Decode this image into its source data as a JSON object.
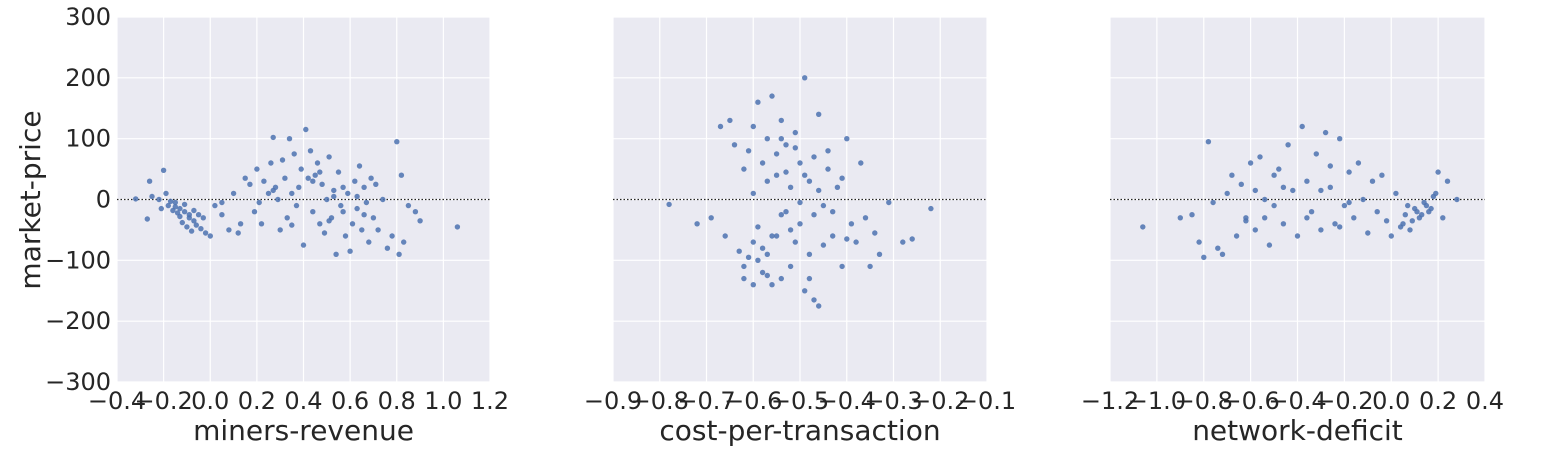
{
  "figure": {
    "ylabel": "market-price"
  },
  "chart_data": [
    {
      "type": "scatter",
      "xlabel": "miners-revenue",
      "ylabel": "market-price",
      "xlim": [
        -0.4,
        1.2
      ],
      "ylim": [
        -300,
        300
      ],
      "xticks": [
        "−0.4",
        "−0.2",
        "0.0",
        "0.2",
        "0.4",
        "0.6",
        "0.8",
        "1.0",
        "1.2"
      ],
      "yticks": [
        "300",
        "200",
        "100",
        "0",
        "−100",
        "−200",
        "−300"
      ],
      "reference_line": 0,
      "color": "#4c72b0",
      "points": [
        [
          -0.32,
          1
        ],
        [
          -0.27,
          -32
        ],
        [
          -0.26,
          30
        ],
        [
          -0.25,
          5
        ],
        [
          -0.22,
          0
        ],
        [
          -0.21,
          -15
        ],
        [
          -0.2,
          48
        ],
        [
          -0.19,
          10
        ],
        [
          -0.18,
          -10
        ],
        [
          -0.17,
          -3
        ],
        [
          -0.16,
          -18
        ],
        [
          -0.15,
          -5
        ],
        [
          -0.14,
          -22
        ],
        [
          -0.13,
          -28
        ],
        [
          -0.12,
          -38
        ],
        [
          -0.11,
          -20
        ],
        [
          -0.1,
          -45
        ],
        [
          -0.09,
          -30
        ],
        [
          -0.08,
          -52
        ],
        [
          -0.07,
          -35
        ],
        [
          -0.06,
          -42
        ],
        [
          -0.05,
          -25
        ],
        [
          -0.04,
          -48
        ],
        [
          -0.03,
          -30
        ],
        [
          -0.02,
          -55
        ],
        [
          0.0,
          -60
        ],
        [
          0.02,
          -10
        ],
        [
          0.05,
          -25
        ],
        [
          0.08,
          -50
        ],
        [
          0.1,
          10
        ],
        [
          0.12,
          -55
        ],
        [
          0.13,
          -40
        ],
        [
          0.15,
          35
        ],
        [
          0.17,
          25
        ],
        [
          0.19,
          -20
        ],
        [
          0.2,
          50
        ],
        [
          0.21,
          -5
        ],
        [
          0.23,
          30
        ],
        [
          0.25,
          10
        ],
        [
          0.26,
          60
        ],
        [
          0.27,
          102
        ],
        [
          0.28,
          20
        ],
        [
          0.29,
          0
        ],
        [
          0.3,
          -50
        ],
        [
          0.31,
          65
        ],
        [
          0.32,
          35
        ],
        [
          0.33,
          -30
        ],
        [
          0.34,
          100
        ],
        [
          0.35,
          10
        ],
        [
          0.36,
          75
        ],
        [
          0.37,
          -10
        ],
        [
          0.38,
          20
        ],
        [
          0.39,
          50
        ],
        [
          0.4,
          -75
        ],
        [
          0.41,
          115
        ],
        [
          0.42,
          35
        ],
        [
          0.43,
          80
        ],
        [
          0.44,
          -20
        ],
        [
          0.45,
          40
        ],
        [
          0.46,
          60
        ],
        [
          0.47,
          -40
        ],
        [
          0.48,
          25
        ],
        [
          0.49,
          -55
        ],
        [
          0.5,
          0
        ],
        [
          0.51,
          70
        ],
        [
          0.52,
          -30
        ],
        [
          0.53,
          15
        ],
        [
          0.54,
          -90
        ],
        [
          0.55,
          45
        ],
        [
          0.56,
          -10
        ],
        [
          0.57,
          20
        ],
        [
          0.58,
          -60
        ],
        [
          0.59,
          10
        ],
        [
          0.6,
          -85
        ],
        [
          0.61,
          -40
        ],
        [
          0.62,
          30
        ],
        [
          0.63,
          -15
        ],
        [
          0.64,
          55
        ],
        [
          0.65,
          -50
        ],
        [
          0.66,
          20
        ],
        [
          0.67,
          -5
        ],
        [
          0.68,
          -70
        ],
        [
          0.69,
          35
        ],
        [
          0.7,
          -30
        ],
        [
          0.72,
          -50
        ],
        [
          0.74,
          0
        ],
        [
          0.76,
          -80
        ],
        [
          0.78,
          -60
        ],
        [
          0.8,
          95
        ],
        [
          0.81,
          -90
        ],
        [
          0.82,
          40
        ],
        [
          0.83,
          -70
        ],
        [
          0.85,
          -10
        ],
        [
          0.88,
          -20
        ],
        [
          0.9,
          -35
        ],
        [
          1.06,
          -45
        ],
        [
          -0.15,
          -12
        ],
        [
          -0.13,
          -15
        ],
        [
          -0.11,
          -8
        ],
        [
          -0.09,
          -25
        ],
        [
          -0.07,
          -18
        ],
        [
          0.05,
          -5
        ],
        [
          0.22,
          -40
        ],
        [
          0.27,
          15
        ],
        [
          0.35,
          -42
        ],
        [
          0.44,
          30
        ],
        [
          0.47,
          45
        ],
        [
          0.51,
          -35
        ],
        [
          0.53,
          5
        ],
        [
          0.57,
          -20
        ],
        [
          0.63,
          5
        ],
        [
          0.66,
          -25
        ],
        [
          0.71,
          25
        ]
      ]
    },
    {
      "type": "scatter",
      "xlabel": "cost-per-transaction",
      "ylabel": "market-price",
      "xlim": [
        -0.9,
        -0.1
      ],
      "ylim": [
        -300,
        300
      ],
      "xticks": [
        "−0.9",
        "−0.8",
        "−0.7",
        "−0.6",
        "−0.5",
        "−0.4",
        "−0.3",
        "−0.2",
        "−0.1"
      ],
      "yticks": [
        "300",
        "200",
        "100",
        "0",
        "−100",
        "−200",
        "−300"
      ],
      "reference_line": 0,
      "color": "#4c72b0",
      "points": [
        [
          -0.78,
          -8
        ],
        [
          -0.72,
          -40
        ],
        [
          -0.69,
          -30
        ],
        [
          -0.67,
          120
        ],
        [
          -0.66,
          -60
        ],
        [
          -0.65,
          130
        ],
        [
          -0.64,
          90
        ],
        [
          -0.63,
          -85
        ],
        [
          -0.62,
          -130
        ],
        [
          -0.61,
          80
        ],
        [
          -0.6,
          -70
        ],
        [
          -0.6,
          120
        ],
        [
          -0.59,
          -100
        ],
        [
          -0.59,
          160
        ],
        [
          -0.58,
          60
        ],
        [
          -0.58,
          -120
        ],
        [
          -0.57,
          100
        ],
        [
          -0.57,
          -90
        ],
        [
          -0.56,
          170
        ],
        [
          -0.56,
          -140
        ],
        [
          -0.55,
          40
        ],
        [
          -0.55,
          -60
        ],
        [
          -0.54,
          130
        ],
        [
          -0.54,
          -130
        ],
        [
          -0.53,
          90
        ],
        [
          -0.53,
          -20
        ],
        [
          -0.52,
          20
        ],
        [
          -0.52,
          -110
        ],
        [
          -0.51,
          110
        ],
        [
          -0.51,
          -70
        ],
        [
          -0.5,
          60
        ],
        [
          -0.5,
          -40
        ],
        [
          -0.49,
          200
        ],
        [
          -0.49,
          -150
        ],
        [
          -0.48,
          30
        ],
        [
          -0.48,
          -90
        ],
        [
          -0.47,
          70
        ],
        [
          -0.47,
          -165
        ],
        [
          -0.46,
          140
        ],
        [
          -0.46,
          -175
        ],
        [
          -0.45,
          -10
        ],
        [
          -0.44,
          80
        ],
        [
          -0.43,
          -60
        ],
        [
          -0.42,
          20
        ],
        [
          -0.41,
          -110
        ],
        [
          -0.4,
          100
        ],
        [
          -0.39,
          -40
        ],
        [
          -0.38,
          -70
        ],
        [
          -0.37,
          60
        ],
        [
          -0.36,
          -30
        ],
        [
          -0.35,
          -110
        ],
        [
          -0.34,
          -55
        ],
        [
          -0.33,
          -90
        ],
        [
          -0.31,
          -5
        ],
        [
          -0.28,
          -70
        ],
        [
          -0.26,
          -65
        ],
        [
          -0.22,
          -15
        ],
        [
          -0.62,
          50
        ],
        [
          -0.61,
          -95
        ],
        [
          -0.6,
          10
        ],
        [
          -0.59,
          -45
        ],
        [
          -0.58,
          -80
        ],
        [
          -0.57,
          30
        ],
        [
          -0.56,
          -60
        ],
        [
          -0.55,
          75
        ],
        [
          -0.54,
          -25
        ],
        [
          -0.53,
          45
        ],
        [
          -0.52,
          -50
        ],
        [
          -0.51,
          85
        ],
        [
          -0.5,
          -5
        ],
        [
          -0.49,
          40
        ],
        [
          -0.48,
          -130
        ],
        [
          -0.47,
          -25
        ],
        [
          -0.46,
          15
        ],
        [
          -0.45,
          -75
        ],
        [
          -0.44,
          50
        ],
        [
          -0.43,
          -20
        ],
        [
          -0.41,
          35
        ],
        [
          -0.4,
          -65
        ],
        [
          -0.62,
          -110
        ],
        [
          -0.6,
          -140
        ],
        [
          -0.57,
          -125
        ],
        [
          -0.54,
          100
        ]
      ]
    },
    {
      "type": "scatter",
      "xlabel": "network-deficit",
      "ylabel": "market-price",
      "xlim": [
        -1.2,
        0.4
      ],
      "ylim": [
        -300,
        300
      ],
      "xticks": [
        "−1.2",
        "−1.0",
        "−0.8",
        "−0.6",
        "−0.4",
        "−0.2",
        "0.0",
        "0.2",
        "0.4"
      ],
      "yticks": [
        "300",
        "200",
        "100",
        "0",
        "−100",
        "−200",
        "−300"
      ],
      "reference_line": 0,
      "color": "#4c72b0",
      "points": [
        [
          -1.06,
          -45
        ],
        [
          -0.9,
          -30
        ],
        [
          -0.85,
          -25
        ],
        [
          -0.82,
          -70
        ],
        [
          -0.8,
          -95
        ],
        [
          -0.78,
          95
        ],
        [
          -0.76,
          -5
        ],
        [
          -0.74,
          -80
        ],
        [
          -0.72,
          -90
        ],
        [
          -0.7,
          10
        ],
        [
          -0.68,
          40
        ],
        [
          -0.66,
          -60
        ],
        [
          -0.64,
          25
        ],
        [
          -0.62,
          -30
        ],
        [
          -0.6,
          60
        ],
        [
          -0.58,
          -50
        ],
        [
          -0.56,
          70
        ],
        [
          -0.54,
          0
        ],
        [
          -0.52,
          -75
        ],
        [
          -0.5,
          -10
        ],
        [
          -0.48,
          50
        ],
        [
          -0.46,
          -40
        ],
        [
          -0.44,
          90
        ],
        [
          -0.42,
          15
        ],
        [
          -0.4,
          -60
        ],
        [
          -0.38,
          120
        ],
        [
          -0.36,
          30
        ],
        [
          -0.34,
          -20
        ],
        [
          -0.32,
          75
        ],
        [
          -0.3,
          -50
        ],
        [
          -0.28,
          110
        ],
        [
          -0.26,
          20
        ],
        [
          -0.24,
          -40
        ],
        [
          -0.22,
          100
        ],
        [
          -0.2,
          -10
        ],
        [
          -0.18,
          45
        ],
        [
          -0.16,
          -30
        ],
        [
          -0.14,
          60
        ],
        [
          -0.12,
          0
        ],
        [
          -0.1,
          -55
        ],
        [
          -0.08,
          30
        ],
        [
          -0.06,
          -20
        ],
        [
          -0.04,
          40
        ],
        [
          -0.02,
          -35
        ],
        [
          0.0,
          -60
        ],
        [
          0.02,
          10
        ],
        [
          0.04,
          -45
        ],
        [
          0.06,
          -25
        ],
        [
          0.08,
          -50
        ],
        [
          0.1,
          -15
        ],
        [
          0.12,
          -30
        ],
        [
          0.14,
          -5
        ],
        [
          0.16,
          -20
        ],
        [
          0.18,
          5
        ],
        [
          0.2,
          45
        ],
        [
          0.22,
          -30
        ],
        [
          0.24,
          30
        ],
        [
          0.28,
          0
        ],
        [
          0.05,
          -40
        ],
        [
          0.07,
          -10
        ],
        [
          0.09,
          -35
        ],
        [
          0.11,
          -20
        ],
        [
          0.13,
          -25
        ],
        [
          0.15,
          -10
        ],
        [
          0.17,
          -15
        ],
        [
          0.19,
          10
        ],
        [
          -0.46,
          20
        ],
        [
          -0.5,
          40
        ],
        [
          -0.54,
          -30
        ],
        [
          -0.58,
          15
        ],
        [
          -0.62,
          -35
        ],
        [
          -0.36,
          -30
        ],
        [
          -0.3,
          15
        ],
        [
          -0.26,
          55
        ],
        [
          -0.22,
          -45
        ],
        [
          -0.18,
          -5
        ]
      ]
    }
  ]
}
